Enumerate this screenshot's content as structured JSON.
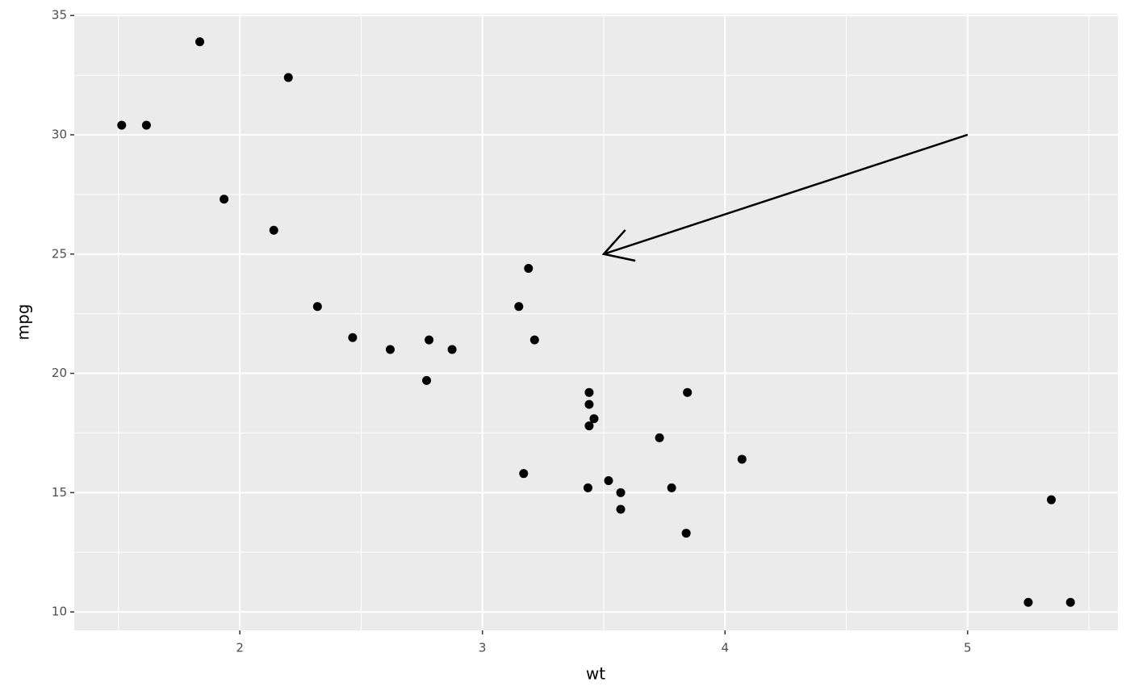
{
  "chart_data": {
    "type": "scatter",
    "x_label": "wt",
    "y_label": "mpg",
    "x": [
      2.62,
      2.875,
      2.32,
      3.215,
      3.44,
      3.46,
      3.57,
      3.19,
      3.15,
      3.44,
      3.44,
      4.07,
      3.73,
      3.78,
      5.25,
      5.424,
      5.345,
      2.2,
      1.615,
      1.835,
      2.465,
      3.52,
      3.435,
      3.84,
      3.845,
      1.935,
      2.14,
      1.513,
      3.17,
      2.77,
      3.57,
      2.78
    ],
    "values": [
      21.0,
      21.0,
      22.8,
      21.4,
      18.7,
      18.1,
      14.3,
      24.4,
      22.8,
      19.2,
      17.8,
      16.4,
      17.3,
      15.2,
      10.4,
      10.4,
      14.7,
      32.4,
      30.4,
      33.9,
      21.5,
      15.5,
      15.2,
      13.3,
      19.2,
      27.3,
      26.0,
      30.4,
      15.8,
      19.7,
      15.0,
      21.4
    ],
    "color": "#000000",
    "xlim": [
      1.3175,
      5.6195
    ],
    "ylim": [
      9.225,
      35.075
    ],
    "xticks": [
      2,
      3,
      4,
      5
    ],
    "yticks": [
      10,
      15,
      20,
      25,
      30,
      35
    ],
    "x_minor": [
      1.5,
      2.5,
      3.5,
      4.5,
      5.5
    ],
    "y_minor": [
      12.5,
      17.5,
      22.5,
      27.5,
      32.5
    ],
    "grid": true,
    "annotation": {
      "x": 5,
      "y": 30,
      "xend": 3.5,
      "yend": 25
    }
  }
}
